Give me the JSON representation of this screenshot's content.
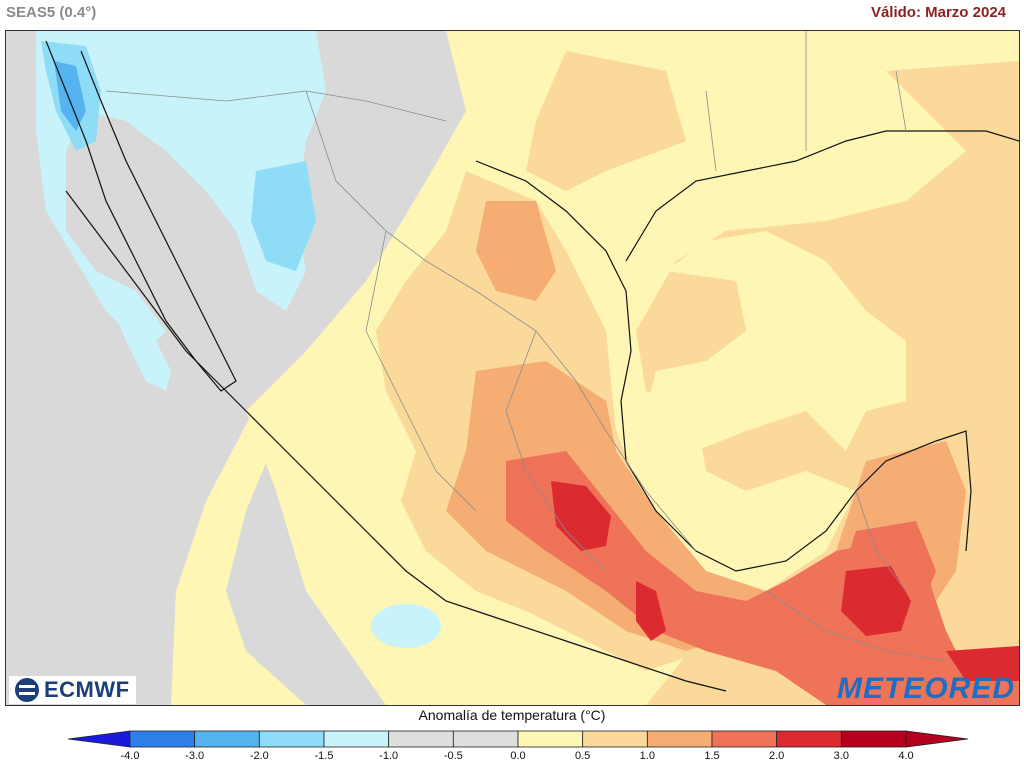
{
  "header": {
    "model": "SEAS5 (0.4°)",
    "valid": "Válido: Marzo 2024"
  },
  "legend": {
    "title": "Anomalía de temperatura (°C)",
    "ticks": [
      "-4.0",
      "-3.0",
      "-2.0",
      "-1.5",
      "-1.0",
      "-0.5",
      "0.0",
      "0.5",
      "1.0",
      "1.5",
      "2.0",
      "3.0",
      "4.0"
    ],
    "colors": [
      "#1a1adc",
      "#2f7fe8",
      "#55b4f0",
      "#8fdcf7",
      "#c9f3fa",
      "#dedede",
      "#dedede",
      "#fdf6b4",
      "#fbd99a",
      "#f6ad74",
      "#ee7359",
      "#dc2b30",
      "#b4001c"
    ]
  },
  "logos": {
    "left": "ECMWF",
    "right": "METEORED"
  }
}
